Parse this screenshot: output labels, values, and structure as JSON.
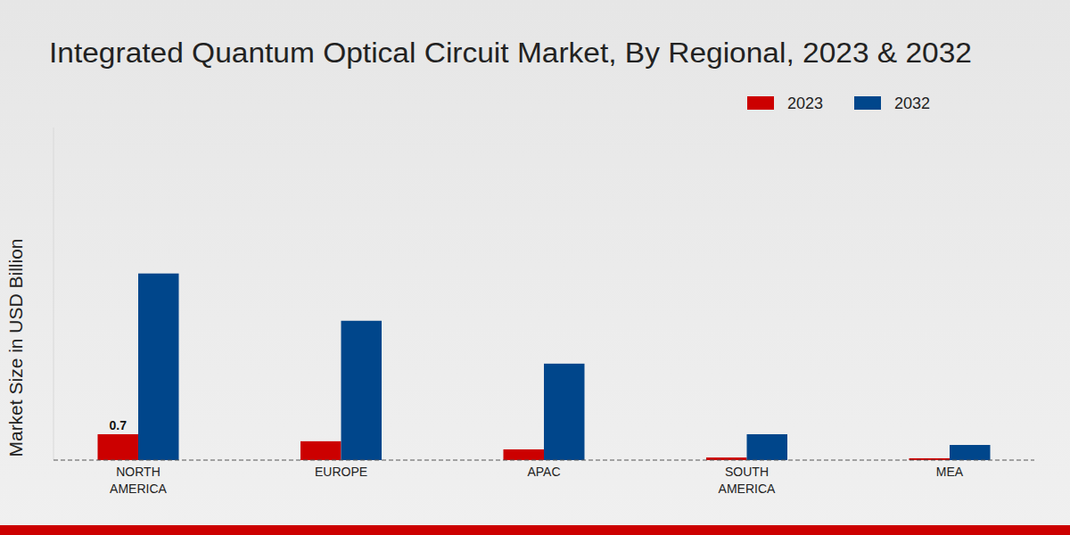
{
  "chart_data": {
    "type": "bar",
    "title": "Integrated Quantum Optical Circuit Market, By Regional, 2023 & 2032",
    "y_label": "Market Size in USD Billion",
    "categories": [
      "NORTH AMERICA",
      "EUROPE",
      "APAC",
      "SOUTH AMERICA",
      "MEA"
    ],
    "series": [
      {
        "name": "2023",
        "color": "#cc0000",
        "values": [
          0.7,
          0.51,
          0.29,
          0.07,
          0.05
        ],
        "data_labels": true,
        "value_labels": [
          "0.7",
          null,
          null,
          null,
          null
        ]
      },
      {
        "name": "2032",
        "color": "#00468b",
        "values": [
          5.05,
          3.77,
          2.61,
          0.7,
          0.41
        ]
      }
    ],
    "ylim": [
      0,
      9
    ],
    "tick_labels": "x",
    "legend": "top-right",
    "grid": false
  }
}
